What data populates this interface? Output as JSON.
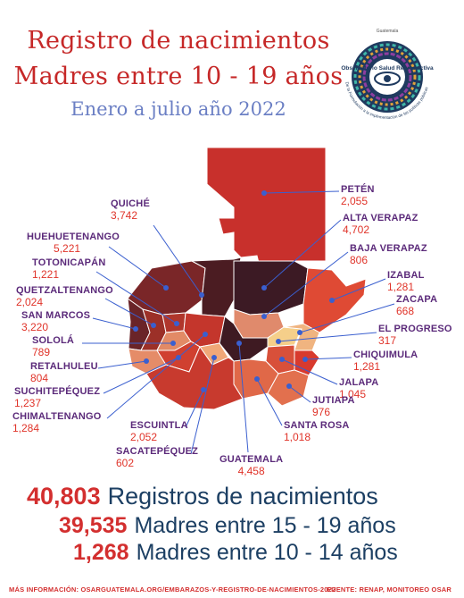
{
  "header": {
    "title_line1": "Registro de nacimientos",
    "title_line2": "Madres entre 10 - 19 años",
    "subtitle": "Enero a julio año 2022"
  },
  "logo": {
    "top_text": "Guatemala",
    "name": "Observatorio Salud Reproductiva",
    "ring_text": "De la Formulación a la implementación de las políticas públicas"
  },
  "departments": [
    {
      "name": "PETÉN",
      "value": "2,055"
    },
    {
      "name": "QUICHÉ",
      "value": "3,742"
    },
    {
      "name": "ALTA VERAPAZ",
      "value": "4,702"
    },
    {
      "name": "HUEHUETENANGO",
      "value": "5,221"
    },
    {
      "name": "BAJA VERAPAZ",
      "value": "806"
    },
    {
      "name": "TOTONICAPÁN",
      "value": "1,221"
    },
    {
      "name": "IZABAL",
      "value": "1,281"
    },
    {
      "name": "QUETZALTENANGO",
      "value": "2,024"
    },
    {
      "name": "ZACAPA",
      "value": "668"
    },
    {
      "name": "SAN MARCOS",
      "value": "3,220"
    },
    {
      "name": "EL PROGRESO",
      "value": "317"
    },
    {
      "name": "SOLOLÁ",
      "value": "789"
    },
    {
      "name": "RETALHULEU",
      "value": "804"
    },
    {
      "name": "CHIQUIMULA",
      "value": "1,281"
    },
    {
      "name": "SUCHITEPÉQUEZ",
      "value": "1,237"
    },
    {
      "name": "JALAPA",
      "value": "1,045"
    },
    {
      "name": "CHIMALTENANGO",
      "value": "1,284"
    },
    {
      "name": "JUTIAPA",
      "value": "976"
    },
    {
      "name": "ESCUINTLA",
      "value": "2,052"
    },
    {
      "name": "SANTA ROSA",
      "value": "1,018"
    },
    {
      "name": "SACATEPÉQUEZ",
      "value": "602"
    },
    {
      "name": "GUATEMALA",
      "value": "4,458"
    }
  ],
  "stats": [
    {
      "number": "40,803",
      "label": "Registros de nacimientos"
    },
    {
      "number": "39,535",
      "label": "Madres entre 15 - 19 años"
    },
    {
      "number": "1,268",
      "label": "Madres entre 10 - 14 años"
    }
  ],
  "footer": {
    "left": "MÁS INFORMACIÓN: OSARGUATEMALA.ORG/EMBARAZOS-Y-REGISTRO-DE-NACIMIENTOS-2022",
    "right": "FUENTE: RENAP, MONITOREO OSAR"
  },
  "colors": {
    "title": "#c62828",
    "subtitle": "#6b7fc4",
    "label_name": "#5b2a7a",
    "label_value": "#e0342a",
    "stat_text": "#1c3f63"
  }
}
